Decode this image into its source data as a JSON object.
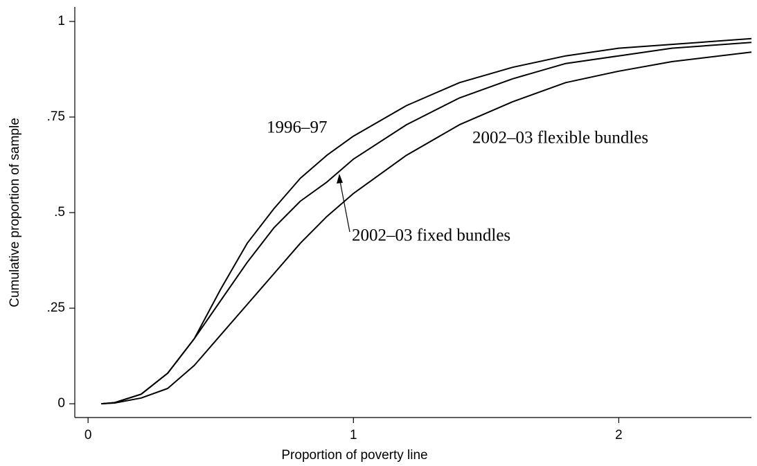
{
  "chart_data": {
    "type": "line",
    "xlabel": "Proportion of poverty line",
    "ylabel": "Cumulative proportion of sample",
    "x": [
      0.05,
      0.1,
      0.2,
      0.3,
      0.4,
      0.5,
      0.6,
      0.7,
      0.8,
      0.9,
      1.0,
      1.2,
      1.4,
      1.6,
      1.8,
      2.0,
      2.2,
      2.5
    ],
    "series": [
      {
        "name": "1996–97",
        "color": "#000000",
        "values": [
          0,
          0.003,
          0.025,
          0.08,
          0.17,
          0.3,
          0.42,
          0.51,
          0.59,
          0.65,
          0.7,
          0.78,
          0.84,
          0.88,
          0.91,
          0.93,
          0.94,
          0.955
        ]
      },
      {
        "name": "2002–03 fixed bundles",
        "color": "#000000",
        "values": [
          0,
          0.003,
          0.025,
          0.08,
          0.17,
          0.27,
          0.37,
          0.46,
          0.53,
          0.58,
          0.64,
          0.73,
          0.8,
          0.85,
          0.89,
          0.91,
          0.93,
          0.945
        ]
      },
      {
        "name": "2002–03 flexible bundles",
        "color": "#000000",
        "values": [
          0,
          0.002,
          0.015,
          0.04,
          0.1,
          0.18,
          0.26,
          0.34,
          0.42,
          0.49,
          0.55,
          0.65,
          0.73,
          0.79,
          0.84,
          0.87,
          0.895,
          0.92
        ]
      }
    ],
    "xlim": [
      -0.05,
      2.5
    ],
    "ylim": [
      -0.036,
      1.038
    ],
    "xticks": [
      0,
      1,
      2
    ],
    "yticks": [
      0,
      {
        "value": 0.25,
        "label": ".25"
      },
      {
        "value": 0.5,
        "label": ".5"
      },
      {
        "value": 0.75,
        "label": ".75"
      },
      1
    ]
  }
}
